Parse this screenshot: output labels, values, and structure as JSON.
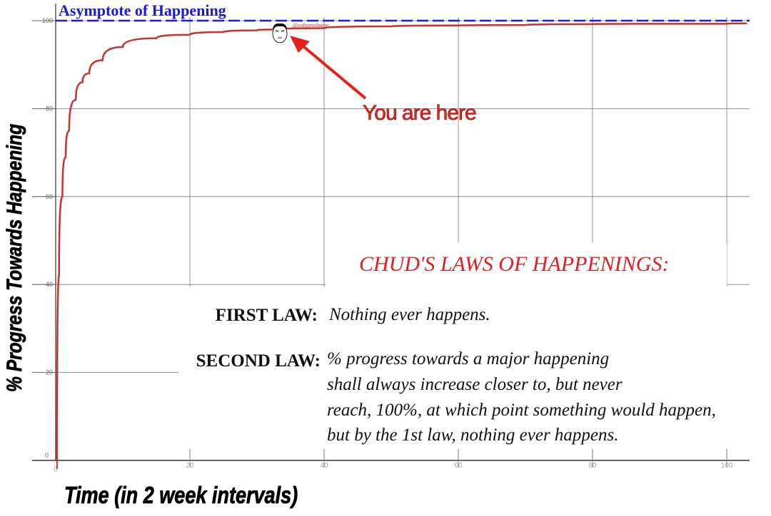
{
  "chart_data": {
    "type": "line",
    "xlabel": "Time (in 2 week intervals)",
    "ylabel": "% Progress Towards Happening",
    "xlim": [
      0,
      100
    ],
    "ylim": [
      0,
      100
    ],
    "x_ticks": [
      "0",
      "20",
      "40",
      "60",
      "80",
      "100"
    ],
    "y_ticks": [
      "0",
      "20",
      "40",
      "60",
      "80",
      "100"
    ],
    "grid": true,
    "series": [
      {
        "color": "#c8322c",
        "x": [
          0.2,
          0.5,
          1,
          1.5,
          2,
          3,
          4,
          5,
          7,
          10,
          15,
          20,
          25,
          30,
          33,
          40,
          50,
          60,
          70,
          80,
          90,
          100,
          103
        ],
        "y": [
          0,
          42,
          60,
          69,
          75,
          82,
          86,
          88,
          91,
          94,
          96,
          96.8,
          97.4,
          97.8,
          98,
          98.3,
          98.7,
          98.9,
          99.0,
          99.2,
          99.3,
          99.3,
          99.4
        ]
      }
    ],
    "asymptote": {
      "y": 100,
      "label": "Asymptote of Happening",
      "color": "#1a1ad0"
    },
    "annotation": {
      "text": "You are here",
      "x": 33,
      "y": 98,
      "color": "#e8201c"
    }
  },
  "watermark": "@cohomologee",
  "laws": {
    "title": "CHUD'S LAWS OF HAPPENINGS:",
    "first_label": "FIRST LAW:",
    "first_text": "Nothing ever happens.",
    "second_label": "SECOND LAW:",
    "second_lines": [
      "% progress towards a major happening",
      "shall always increase closer to, but never",
      "reach, 100%, at which point something would happen,",
      "but by the 1st law, nothing ever happens."
    ]
  }
}
